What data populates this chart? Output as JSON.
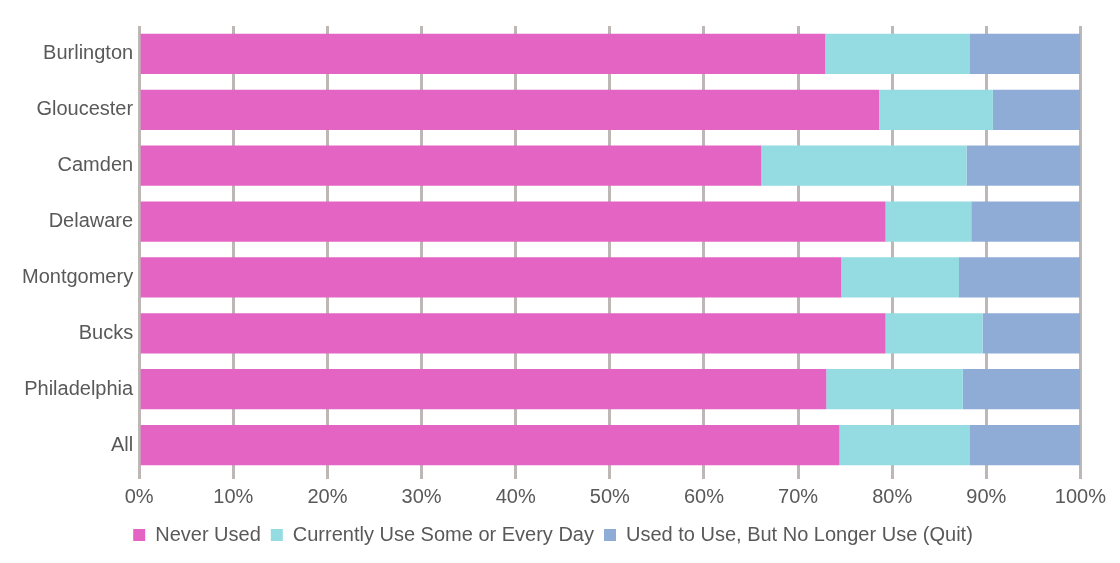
{
  "chart_data": {
    "type": "bar",
    "orientation": "horizontal",
    "stacked": true,
    "categories": [
      "Burlington",
      "Gloucester",
      "Camden",
      "Delaware",
      "Montgomery",
      "Bucks",
      "Philadelphia",
      "All"
    ],
    "series": [
      {
        "name": "Never Used",
        "color": "#e364c3",
        "values": [
          72.9,
          78.6,
          66.1,
          79.3,
          74.6,
          79.3,
          73.0,
          74.4
        ]
      },
      {
        "name": "Currently Use Some or Every Day",
        "color": "#94dce1",
        "values": [
          15.3,
          12.1,
          21.8,
          9.1,
          12.5,
          10.3,
          14.5,
          13.8
        ]
      },
      {
        "name": "Used to Use, But No Longer Use (Quit)",
        "color": "#8facd6",
        "values": [
          11.8,
          9.3,
          12.1,
          11.6,
          12.9,
          10.4,
          12.5,
          11.8
        ]
      }
    ],
    "xlim": [
      0,
      100
    ],
    "xticks": [
      {
        "value": 0,
        "label": "0%"
      },
      {
        "value": 10,
        "label": "10%"
      },
      {
        "value": 20,
        "label": "20%"
      },
      {
        "value": 30,
        "label": "30%"
      },
      {
        "value": 40,
        "label": "40%"
      },
      {
        "value": 50,
        "label": "50%"
      },
      {
        "value": 60,
        "label": "60%"
      },
      {
        "value": 70,
        "label": "70%"
      },
      {
        "value": 80,
        "label": "80%"
      },
      {
        "value": 90,
        "label": "90%"
      },
      {
        "value": 100,
        "label": "100%"
      }
    ],
    "grid": "x",
    "legend": "bottom"
  }
}
